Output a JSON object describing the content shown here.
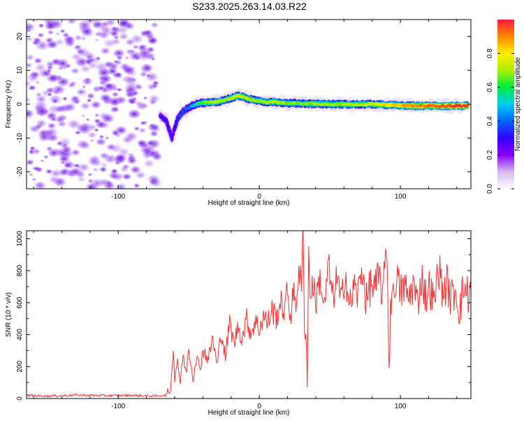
{
  "title": "S233.2025.263.14.03.R22",
  "chart_data": [
    {
      "type": "heatmap",
      "title": "S233.2025.263.14.03.R22",
      "xlabel": "Height of straight line (km)",
      "ylabel": "Frequency (Hz)",
      "xlim": [
        -165,
        150
      ],
      "ylim": [
        -25,
        25
      ],
      "xticks": [
        -100,
        0,
        100
      ],
      "yticks": [
        -20,
        -10,
        0,
        10,
        20
      ],
      "colorbar": {
        "label": "Normalized spectral amplitude",
        "range": [
          0,
          1
        ],
        "ticks": [
          0.0,
          0.2,
          0.4,
          0.6,
          0.8
        ],
        "tick_labels": [
          "0.0",
          "0.2",
          "0.4",
          "0.6",
          "0.8"
        ],
        "colors": [
          "#ffffff",
          "#d8b8f0",
          "#8800ff",
          "#3300ff",
          "#0066ff",
          "#00ccee",
          "#00ee44",
          "#aaee00",
          "#ffee00",
          "#ff8800",
          "#ff1744"
        ]
      },
      "noise_region_x": [
        -165,
        -72
      ],
      "ridge": {
        "x": [
          -70,
          -66,
          -62,
          -60,
          -58,
          -55,
          -52,
          -48,
          -44,
          -40,
          -35,
          -30,
          -25,
          -20,
          -15,
          -12,
          -8,
          -4,
          0,
          5,
          10,
          15,
          20,
          25,
          30,
          40,
          50,
          60,
          70,
          80,
          90,
          100,
          110,
          120,
          130,
          140,
          148
        ],
        "freq": [
          -3.5,
          -5,
          -10,
          -7,
          -4.5,
          -2.5,
          -1.5,
          -0.5,
          0.2,
          0.4,
          0.5,
          0.6,
          1.2,
          1.8,
          2.5,
          2.2,
          1.6,
          1.2,
          1.0,
          0.6,
          0.8,
          0.4,
          0.3,
          0.3,
          0.2,
          0.1,
          0.0,
          0.0,
          -0.1,
          0.0,
          -0.2,
          -0.4,
          -0.5,
          -0.5,
          -0.5,
          -0.5,
          -0.5
        ],
        "amplitude": [
          0.3,
          0.3,
          0.3,
          0.32,
          0.34,
          0.36,
          0.38,
          0.45,
          0.55,
          0.65,
          0.7,
          0.72,
          0.7,
          0.7,
          0.75,
          0.72,
          0.7,
          0.68,
          0.7,
          0.7,
          0.72,
          0.7,
          0.68,
          0.66,
          0.66,
          0.68,
          0.7,
          0.7,
          0.72,
          0.75,
          0.8,
          0.85,
          0.9,
          0.92,
          0.95,
          0.97,
          0.98
        ]
      }
    },
    {
      "type": "line",
      "xlabel": "Height of straight line (km)",
      "ylabel": "SNR (10 * v/v)",
      "xlim": [
        -165,
        150
      ],
      "ylim": [
        0,
        1050
      ],
      "xticks": [
        -100,
        0,
        100
      ],
      "yticks": [
        0,
        200,
        400,
        600,
        800,
        1000
      ],
      "series": [
        {
          "name": "SNR",
          "color": "#ee3333",
          "x": [
            -165,
            -150,
            -130,
            -110,
            -90,
            -75,
            -66,
            -63,
            -62,
            -61,
            -60,
            -58,
            -56,
            -54,
            -52,
            -50,
            -47,
            -45,
            -42,
            -40,
            -36,
            -33,
            -30,
            -27,
            -24,
            -21,
            -18,
            -15,
            -12,
            -9,
            -6,
            -3,
            0,
            3,
            6,
            9,
            12,
            15,
            18,
            20,
            22,
            24,
            26,
            28,
            30,
            31,
            32,
            33,
            34,
            35,
            36,
            38,
            40,
            43,
            46,
            49,
            52,
            55,
            58,
            61,
            64,
            67,
            70,
            73,
            76,
            79,
            82,
            85,
            88,
            90,
            91,
            92,
            93,
            94,
            95,
            97,
            100,
            103,
            106,
            109,
            112,
            115,
            118,
            121,
            124,
            127,
            130,
            133,
            136,
            139,
            142,
            145,
            148,
            150
          ],
          "y": [
            20,
            15,
            22,
            18,
            20,
            15,
            20,
            60,
            160,
            330,
            120,
            250,
            90,
            280,
            150,
            320,
            130,
            250,
            200,
            300,
            250,
            380,
            200,
            420,
            260,
            480,
            340,
            450,
            380,
            500,
            410,
            480,
            440,
            520,
            470,
            560,
            500,
            600,
            550,
            680,
            520,
            650,
            600,
            800,
            700,
            1050,
            500,
            400,
            150,
            900,
            650,
            720,
            600,
            760,
            550,
            840,
            620,
            760,
            590,
            800,
            560,
            700,
            650,
            820,
            600,
            720,
            680,
            760,
            640,
            1010,
            700,
            170,
            550,
            720,
            610,
            780,
            660,
            700,
            620,
            720,
            590,
            760,
            640,
            700,
            580,
            840,
            660,
            720,
            620,
            690,
            560,
            700,
            650,
            680
          ]
        }
      ]
    }
  ]
}
